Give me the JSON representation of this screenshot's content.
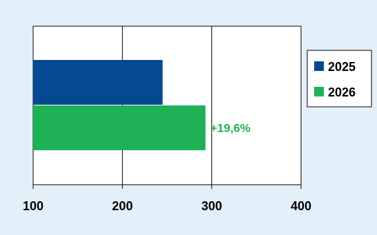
{
  "chart_data": {
    "type": "bar",
    "orientation": "horizontal",
    "categories": [
      ""
    ],
    "series": [
      {
        "name": "2025",
        "values": [
          245
        ],
        "color": "#034a91"
      },
      {
        "name": "2026",
        "values": [
          293
        ],
        "color": "#1eb156"
      }
    ],
    "annotations": [
      {
        "text": "+19,6%",
        "series": "2026",
        "color": "#1eb156"
      }
    ],
    "x_ticks": [
      "100",
      "200",
      "300",
      "400"
    ],
    "xlim": [
      100,
      400
    ],
    "grid": {
      "vertical": true
    },
    "legend": "right",
    "colors": {
      "background": "#e3eff9",
      "plot_area": "#ffffff",
      "axis": "#000000"
    }
  }
}
